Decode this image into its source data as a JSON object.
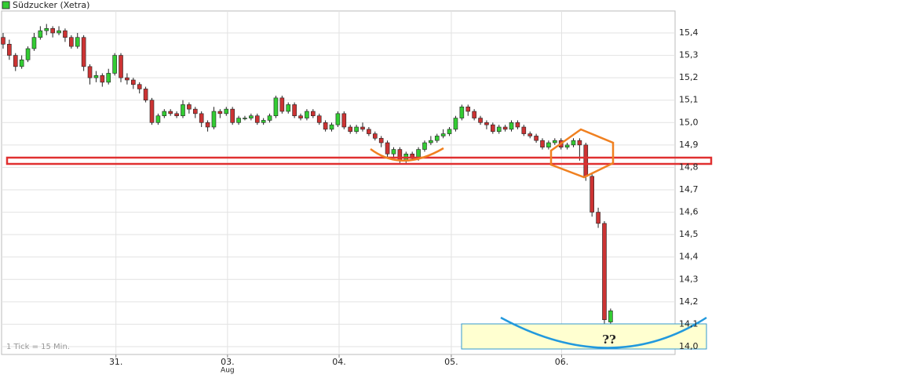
{
  "chart_data": {
    "type": "candlestick",
    "title": "Südzucker (Xetra)",
    "note": "1 Tick = 15 Min.",
    "annotation": "??",
    "month_label": "Aug",
    "up_color": "#33cc33",
    "down_color": "#cc3333",
    "grid": true,
    "open": [
      15.38,
      15.35,
      15.3,
      15.25,
      15.28,
      15.33,
      15.38,
      15.41,
      15.42,
      15.4,
      15.41,
      15.38,
      15.34,
      15.38,
      15.25,
      15.2,
      15.21,
      15.18,
      15.22,
      15.3,
      15.2,
      15.19,
      15.17,
      15.15,
      15.1,
      15.0,
      15.03,
      15.05,
      15.04,
      15.03,
      15.08,
      15.06,
      15.04,
      15.0,
      14.98,
      15.05,
      15.04,
      15.06,
      15.0,
      15.02,
      15.02,
      15.03,
      15.0,
      15.01,
      15.03,
      15.11,
      15.05,
      15.08,
      15.03,
      15.02,
      15.05,
      15.03,
      15.0,
      14.97,
      14.99,
      15.04,
      14.98,
      14.96,
      14.98,
      14.97,
      14.95,
      14.93,
      14.91,
      14.86,
      14.88,
      14.83,
      14.86,
      14.84,
      14.88,
      14.91,
      14.92,
      14.94,
      14.95,
      14.97,
      15.02,
      15.07,
      15.05,
      15.02,
      15.0,
      14.99,
      14.96,
      14.98,
      14.97,
      15.0,
      14.98,
      14.95,
      14.94,
      14.92,
      14.89,
      14.91,
      14.92,
      14.89,
      14.9,
      14.92,
      14.9,
      14.76,
      14.6,
      14.55,
      14.11
    ],
    "high": [
      15.4,
      15.37,
      15.31,
      15.3,
      15.34,
      15.4,
      15.43,
      15.44,
      15.43,
      15.43,
      15.42,
      15.39,
      15.4,
      15.39,
      15.26,
      15.23,
      15.22,
      15.24,
      15.31,
      15.31,
      15.22,
      15.2,
      15.18,
      15.16,
      15.11,
      15.04,
      15.06,
      15.06,
      15.05,
      15.1,
      15.09,
      15.07,
      15.05,
      15.01,
      15.07,
      15.06,
      15.07,
      15.07,
      15.03,
      15.03,
      15.04,
      15.04,
      15.02,
      15.04,
      15.12,
      15.12,
      15.09,
      15.09,
      15.04,
      15.06,
      15.06,
      15.04,
      15.01,
      15.0,
      15.05,
      15.05,
      14.99,
      14.99,
      15.0,
      14.98,
      14.96,
      14.94,
      14.92,
      14.89,
      14.89,
      14.87,
      14.87,
      14.89,
      14.92,
      14.94,
      14.95,
      14.97,
      14.98,
      15.03,
      15.08,
      15.08,
      15.06,
      15.03,
      15.01,
      15.0,
      14.99,
      14.99,
      15.01,
      15.01,
      14.99,
      14.96,
      14.95,
      14.93,
      14.92,
      14.93,
      14.93,
      14.91,
      14.93,
      14.93,
      14.91,
      14.77,
      14.62,
      14.56,
      14.17
    ],
    "low": [
      15.33,
      15.28,
      15.23,
      15.24,
      15.27,
      15.32,
      15.37,
      15.39,
      15.38,
      15.39,
      15.36,
      15.33,
      15.33,
      15.23,
      15.17,
      15.18,
      15.16,
      15.17,
      15.21,
      15.18,
      15.17,
      15.15,
      15.13,
      15.09,
      14.99,
      14.99,
      15.02,
      15.03,
      15.02,
      15.02,
      15.04,
      15.02,
      14.98,
      14.96,
      14.97,
      15.02,
      15.03,
      14.99,
      14.99,
      15.01,
      15.01,
      14.99,
      14.99,
      15.0,
      15.02,
      15.04,
      15.04,
      15.02,
      15.01,
      15.01,
      15.02,
      14.99,
      14.96,
      14.96,
      14.98,
      14.97,
      14.95,
      14.95,
      14.96,
      14.94,
      14.92,
      14.89,
      14.84,
      14.84,
      14.82,
      14.82,
      14.83,
      14.83,
      14.87,
      14.9,
      14.91,
      14.93,
      14.94,
      14.96,
      15.01,
      15.03,
      15.01,
      14.99,
      14.97,
      14.95,
      14.95,
      14.96,
      14.96,
      14.97,
      14.94,
      14.93,
      14.91,
      14.88,
      14.88,
      14.9,
      14.88,
      14.88,
      14.89,
      14.83,
      14.74,
      14.58,
      14.53,
      14.1,
      14.1
    ],
    "close": [
      15.35,
      15.3,
      15.25,
      15.28,
      15.33,
      15.38,
      15.41,
      15.42,
      15.4,
      15.41,
      15.38,
      15.34,
      15.38,
      15.25,
      15.2,
      15.21,
      15.18,
      15.22,
      15.3,
      15.2,
      15.19,
      15.17,
      15.15,
      15.1,
      15.0,
      15.03,
      15.05,
      15.04,
      15.03,
      15.08,
      15.06,
      15.04,
      15.0,
      14.98,
      15.05,
      15.04,
      15.06,
      15.0,
      15.02,
      15.02,
      15.03,
      15.0,
      15.01,
      15.03,
      15.11,
      15.05,
      15.08,
      15.03,
      15.02,
      15.05,
      15.03,
      15.0,
      14.97,
      14.99,
      15.04,
      14.98,
      14.96,
      14.98,
      14.97,
      14.95,
      14.93,
      14.91,
      14.86,
      14.88,
      14.83,
      14.86,
      14.84,
      14.88,
      14.91,
      14.92,
      14.94,
      14.95,
      14.97,
      15.02,
      15.07,
      15.05,
      15.02,
      15.0,
      14.99,
      14.96,
      14.98,
      14.97,
      15.0,
      14.98,
      14.95,
      14.94,
      14.92,
      14.89,
      14.91,
      14.92,
      14.89,
      14.9,
      14.92,
      14.9,
      14.76,
      14.6,
      14.55,
      14.12,
      14.16
    ],
    "ylim": [
      13.965,
      15.498
    ],
    "yticks": [
      {
        "value": 14.0,
        "label": "14,0"
      },
      {
        "value": 14.1,
        "label": "14,1"
      },
      {
        "value": 14.2,
        "label": "14,2"
      },
      {
        "value": 14.3,
        "label": "14,3"
      },
      {
        "value": 14.4,
        "label": "14,4"
      },
      {
        "value": 14.5,
        "label": "14,5"
      },
      {
        "value": 14.6,
        "label": "14,6"
      },
      {
        "value": 14.7,
        "label": "14,7"
      },
      {
        "value": 14.8,
        "label": "14,8"
      },
      {
        "value": 14.9,
        "label": "14,9"
      },
      {
        "value": 15.0,
        "label": "15,0"
      },
      {
        "value": 15.1,
        "label": "15,1"
      },
      {
        "value": 15.2,
        "label": "15,2"
      },
      {
        "value": 15.3,
        "label": "15,3"
      },
      {
        "value": 15.4,
        "label": "15,4"
      }
    ],
    "xlim": [
      -0.25,
      108.4
    ],
    "xticks": [
      {
        "value": 18.2,
        "label": "31."
      },
      {
        "value": 36.2,
        "label": "03."
      },
      {
        "value": 54.2,
        "label": "04."
      },
      {
        "value": 72.3,
        "label": "05."
      },
      {
        "value": 90.1,
        "label": "06."
      }
    ]
  }
}
